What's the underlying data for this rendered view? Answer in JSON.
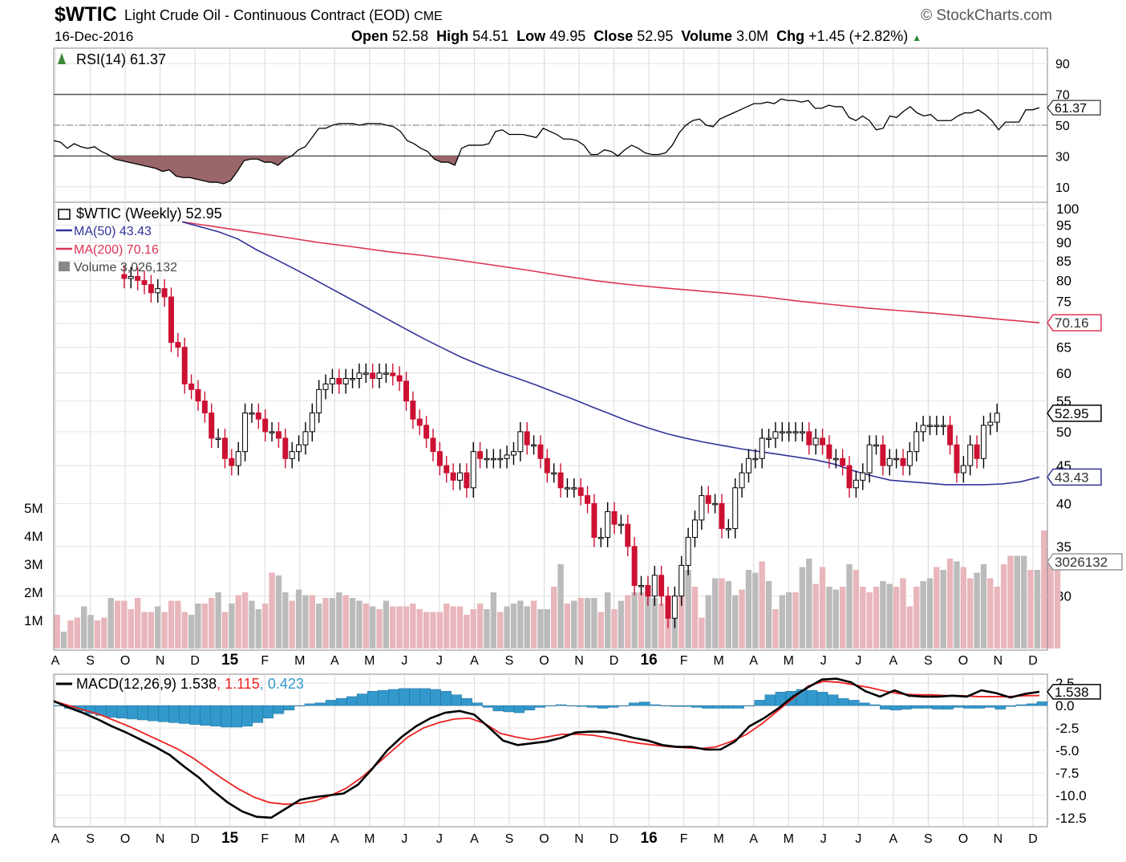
{
  "header": {
    "symbol": "$WTIC",
    "description": "Light Crude Oil - Continuous Contract (EOD)",
    "exchange": "CME",
    "brand": "StockCharts.com",
    "date": "16-Dec-2016",
    "open_label": "Open",
    "open": "52.58",
    "high_label": "High",
    "high": "54.51",
    "low_label": "Low",
    "low": "49.95",
    "close_label": "Close",
    "close": "52.95",
    "volume_label": "Volume",
    "volume": "3.0M",
    "chg_label": "Chg",
    "chg": "+1.45 (+2.82%)"
  },
  "colors": {
    "up": "#000000",
    "down": "#cc1133",
    "ma50": "#33339a",
    "ma200": "#dd3355",
    "vol_up": "#bbbbbb",
    "vol_down": "#e8b6bb",
    "macd": "#000000",
    "signal": "#ee2222",
    "hist": "#3399cc",
    "rsi_fill": "#99666a"
  },
  "chart_data": [
    {
      "type": "line",
      "panel": "rsi",
      "title": "RSI(14) 61.37",
      "last_value_label": "61.37",
      "yticks": [
        "90",
        "70",
        "50",
        "30",
        "10"
      ],
      "overbought": 70,
      "oversold": 30,
      "midline": 50,
      "ylim": [
        0,
        100
      ],
      "values": [
        40,
        39,
        35,
        38,
        36,
        35,
        36,
        33,
        31,
        28,
        27,
        26,
        25,
        24,
        23,
        22,
        20,
        21,
        17,
        16,
        16,
        15,
        14,
        13,
        13,
        12,
        14,
        20,
        27,
        28,
        28,
        26,
        26,
        24,
        28,
        30,
        34,
        36,
        42,
        48,
        48,
        50,
        51,
        51,
        51,
        50,
        51,
        51,
        51,
        50,
        49,
        46,
        40,
        38,
        35,
        33,
        28,
        26,
        26,
        24,
        35,
        37,
        37,
        37,
        38,
        46,
        47,
        44,
        44,
        44,
        43,
        42,
        48,
        46,
        44,
        41,
        41,
        40,
        37,
        31,
        31,
        34,
        33,
        30,
        34,
        37,
        35,
        32,
        31,
        31,
        32,
        37,
        45,
        50,
        53,
        54,
        50,
        49,
        54,
        56,
        58,
        60,
        62,
        64,
        64,
        65,
        64,
        67,
        66,
        66,
        65,
        66,
        61,
        61,
        63,
        62,
        62,
        55,
        53,
        56,
        53,
        47,
        48,
        56,
        55,
        59,
        62,
        58,
        56,
        57,
        53,
        53,
        53,
        56,
        58,
        58,
        60,
        57,
        53,
        47,
        52,
        52,
        52,
        60,
        60,
        61.37
      ]
    },
    {
      "type": "candlestick",
      "panel": "price",
      "title": "$WTIC (Weekly) 52.95",
      "log_scale": true,
      "ylim": [
        26,
        100
      ],
      "yticks": [
        "100",
        "95",
        "90",
        "85",
        "80",
        "75",
        "70",
        "65",
        "60",
        "55",
        "50",
        "45",
        "40",
        "35",
        "30"
      ],
      "last_close_label": "52.95",
      "start_index": 10,
      "closes": [
        80.5,
        81,
        80,
        79,
        77,
        78,
        76,
        66,
        65,
        58,
        57,
        55,
        53,
        49,
        49,
        46,
        45,
        47,
        53,
        53,
        52,
        50,
        50,
        49,
        46,
        47,
        48,
        50,
        53,
        57,
        58,
        59,
        58,
        59,
        59,
        60,
        60,
        59,
        60,
        60,
        59.5,
        58.5,
        55,
        52,
        51,
        49,
        47,
        45,
        44,
        43,
        44,
        42,
        47,
        46,
        46,
        46,
        46,
        46.5,
        47,
        50,
        48,
        48,
        46,
        44,
        44,
        42,
        42,
        42,
        41,
        40,
        36,
        36,
        39,
        37.5,
        37.5,
        35,
        31,
        31,
        30,
        32,
        30,
        28,
        30,
        33,
        36,
        38,
        41,
        40,
        40,
        37,
        37,
        42,
        44,
        46,
        46,
        49,
        49,
        50,
        50,
        50,
        50,
        50,
        48,
        49,
        48,
        46,
        46,
        45,
        42,
        43,
        44,
        48,
        48,
        45,
        46,
        46,
        45,
        47,
        50,
        51,
        51,
        51,
        51,
        48,
        44,
        45,
        48,
        46,
        51,
        51.5,
        52.95
      ],
      "ma50": {
        "label": "MA(50) 43.43",
        "last": "43.43",
        "values": [
          96,
          94.5,
          93,
          91,
          88,
          85.5,
          83,
          80.5,
          78,
          75.6,
          73.3,
          71,
          68.8,
          66.7,
          64.8,
          63,
          61.5,
          60.2,
          59,
          57.8,
          56.5,
          55.3,
          54,
          52.8,
          51.6,
          50.6,
          49.7,
          49,
          48.4,
          47.9,
          47.4,
          47,
          46.6,
          46.2,
          45.8,
          45.2,
          44.3,
          43.6,
          43,
          42.8,
          42.6,
          42.4,
          42.4,
          42.4,
          42.5,
          42.8,
          43.43
        ]
      },
      "ma200": {
        "label": "MA(200) 70.16",
        "last": "70.16",
        "values": [
          96,
          94.5,
          93,
          91.5,
          90,
          88.8,
          87.5,
          86.5,
          85.3,
          84,
          82.7,
          81.3,
          80,
          79,
          78.2,
          77.5,
          76.8,
          76,
          75,
          74.2,
          73.4,
          72.8,
          72.2,
          71.5,
          70.8,
          70.16
        ]
      }
    },
    {
      "type": "bar",
      "panel": "volume",
      "title": "Volume 3,026,132",
      "last_value_label": "3026132",
      "yticks": [
        "5M",
        "4M",
        "3M",
        "2M",
        "1M"
      ],
      "values": [
        1.2,
        0.6,
        1.0,
        1.1,
        1.5,
        1.2,
        1.0,
        1.1,
        1.8,
        1.7,
        1.7,
        1.4,
        1.8,
        1.3,
        1.3,
        1.5,
        1.3,
        1.7,
        1.7,
        1.3,
        1.2,
        1.6,
        1.6,
        1.8,
        2.0,
        1.3,
        1.6,
        1.9,
        2.0,
        1.7,
        1.4,
        1.6,
        2.7,
        2.6,
        2.0,
        1.7,
        2.1,
        1.9,
        1.9,
        1.6,
        1.8,
        1.8,
        2.0,
        1.9,
        1.8,
        1.7,
        1.6,
        1.5,
        1.4,
        1.7,
        1.5,
        1.5,
        1.5,
        1.6,
        1.4,
        1.3,
        1.3,
        1.3,
        1.6,
        1.5,
        1.5,
        1.2,
        1.4,
        1.6,
        1.4,
        2.0,
        1.3,
        1.5,
        1.6,
        1.7,
        1.5,
        1.7,
        1.4,
        1.4,
        2.2,
        3.0,
        1.6,
        1.7,
        1.8,
        1.8,
        1.8,
        1.3,
        2.0,
        1.4,
        1.7,
        1.9,
        2.0,
        2.0,
        1.9,
        1.8,
        1.6,
        1.1,
        1.1,
        2.8,
        2.8,
        2.2,
        1.1,
        1.9,
        2.5,
        2.5,
        2.4,
        1.9,
        2.1,
        2.8,
        2.7,
        3.1,
        2.4,
        1.4,
        1.9,
        2.0,
        2.0,
        2.9,
        3.2,
        2.3,
        2.9,
        2.2,
        2.1,
        2.2,
        3.0,
        2.8,
        2.2,
        2.0,
        2.2,
        2.4,
        2.3,
        2.2,
        2.5,
        1.5,
        2.2,
        2.4,
        2.5,
        2.9,
        2.8,
        3.2,
        3.1,
        2.9,
        2.5,
        2.7,
        3.0,
        2.5,
        2.2,
        3.0,
        3.3,
        3.3,
        3.3,
        2.8,
        2.8,
        4.2,
        3.2,
        3.03
      ],
      "up_flags": [
        0,
        1,
        0,
        0,
        1,
        1,
        0,
        0,
        1,
        0,
        0,
        0,
        0,
        0,
        0,
        1,
        0,
        0,
        0,
        0,
        1,
        1,
        0,
        0,
        1,
        0,
        1,
        0,
        0,
        1,
        1,
        0,
        0,
        1,
        1,
        0,
        1,
        1,
        0,
        1,
        0,
        1,
        1,
        0,
        1,
        1,
        0,
        1,
        0,
        1,
        0,
        0,
        0,
        0,
        0,
        0,
        0,
        0,
        0,
        0,
        0,
        0,
        0,
        0,
        1,
        1,
        0,
        1,
        1,
        1,
        1,
        0,
        1,
        1,
        0,
        1,
        0,
        1,
        0,
        1,
        1,
        0,
        1,
        0,
        1,
        0,
        1,
        0,
        1,
        1,
        0,
        0,
        1,
        0,
        1,
        0,
        0,
        1,
        1,
        0,
        1,
        1,
        0,
        1,
        1,
        0,
        1,
        0,
        1,
        1,
        0,
        1,
        1,
        0,
        0,
        1,
        1,
        0,
        1,
        0,
        0,
        0,
        0,
        1,
        1,
        0,
        0,
        0,
        0,
        1,
        1,
        0,
        1,
        0,
        1,
        0,
        0,
        1,
        1,
        0,
        0,
        0,
        0,
        1,
        1,
        0,
        1,
        0
      ]
    },
    {
      "type": "line",
      "panel": "macd",
      "title": "MACD(12,26,9) 1.538, 1.115, 0.423",
      "macd_label": "MACD(12,26,9) 1.538",
      "signal_label": ", 1.115",
      "hist_label": ", 0.423",
      "last_value_label": "1.538",
      "yticks": [
        "2.5",
        "0.0",
        "-2.5",
        "-5.0",
        "-7.5",
        "-10.0",
        "-12.5"
      ],
      "ylim": [
        -13.5,
        3.5
      ],
      "macd": [
        0.5,
        -0.2,
        -0.8,
        -1.5,
        -2.3,
        -3,
        -3.8,
        -4.6,
        -5.5,
        -6.8,
        -8,
        -9.5,
        -10.8,
        -11.8,
        -12.4,
        -12.5,
        -11.5,
        -10.5,
        -10.2,
        -10,
        -9.8,
        -8.8,
        -7,
        -5,
        -3.5,
        -2.3,
        -1.4,
        -0.8,
        -0.6,
        -1,
        -2.4,
        -3.9,
        -4.4,
        -4.2,
        -4,
        -3.6,
        -3.0,
        -2.9,
        -2.9,
        -3.2,
        -3.6,
        -3.9,
        -4.4,
        -4.6,
        -4.6,
        -4.9,
        -4.9,
        -4.0,
        -2.3,
        -1.4,
        -0.3,
        1.0,
        2.0,
        2.9,
        3.0,
        2.6,
        1.6,
        1.0,
        1.7,
        1.1,
        1.0,
        1.0,
        1.1,
        1.0,
        1.7,
        1.4,
        0.9,
        1.3,
        1.538
      ],
      "signal": [
        0.5,
        0,
        -0.5,
        -1,
        -1.7,
        -2.4,
        -3.2,
        -4,
        -4.8,
        -5.8,
        -7,
        -8.2,
        -9.3,
        -10.2,
        -10.8,
        -11,
        -10.9,
        -10.6,
        -10,
        -9.2,
        -8,
        -6.5,
        -5,
        -3.5,
        -2.5,
        -1.9,
        -1.5,
        -1.4,
        -2,
        -3.1,
        -3.5,
        -3.8,
        -3.5,
        -3.2,
        -3.2,
        -3.3,
        -3.6,
        -3.9,
        -4.2,
        -4.4,
        -4.6,
        -4.7,
        -4.8,
        -4.6,
        -4,
        -3.2,
        -2.0,
        -0.6,
        0.8,
        2.2,
        2.7,
        2.6,
        2.3,
        2.0,
        1.6,
        1.3,
        1.2,
        1.2,
        1.1,
        1.1,
        1.0,
        1.0,
        1.0,
        1.1,
        1.115
      ],
      "histogram": [
        0,
        -0.3,
        -0.6,
        -0.9,
        -1.1,
        -1.3,
        -1.4,
        -1.5,
        -1.6,
        -1.7,
        -1.8,
        -1.9,
        -2,
        -2.1,
        -2.2,
        -2.3,
        -2.4,
        -2.4,
        -2.3,
        -1.9,
        -1.4,
        -0.9,
        -0.5,
        0,
        0.2,
        0.3,
        0.6,
        0.8,
        1,
        1.3,
        1.6,
        1.7,
        1.8,
        1.9,
        1.9,
        1.9,
        1.8,
        1.6,
        1.2,
        0.8,
        0.3,
        -0.2,
        -0.6,
        -0.7,
        -0.8,
        -0.5,
        -0.2,
        0,
        0.1,
        0,
        -0.1,
        -0.2,
        -0.3,
        -0.2,
        0,
        0.3,
        0.4,
        0.1,
        0,
        -0.1,
        -0.1,
        -0.2,
        -0.3,
        -0.3,
        -0.3,
        -0.3,
        0,
        0.6,
        1.2,
        1.5,
        1.6,
        1.8,
        1.7,
        1.5,
        1.2,
        0.8,
        0.6,
        0.3,
        0.1,
        -0.4,
        -0.5,
        -0.4,
        -0.3,
        -0.3,
        -0.4,
        -0.4,
        -0.2,
        -0.3,
        -0.3,
        -0.2,
        -0.4,
        -0.1,
        0.1,
        0.2,
        0.423
      ]
    }
  ],
  "x_axis": {
    "labels": [
      "A",
      "S",
      "O",
      "N",
      "D",
      "15",
      "F",
      "M",
      "A",
      "M",
      "J",
      "J",
      "A",
      "S",
      "O",
      "N",
      "D",
      "16",
      "F",
      "M",
      "A",
      "M",
      "J",
      "J",
      "A",
      "S",
      "O",
      "N",
      "D"
    ],
    "bold": [
      "15",
      "16"
    ]
  }
}
